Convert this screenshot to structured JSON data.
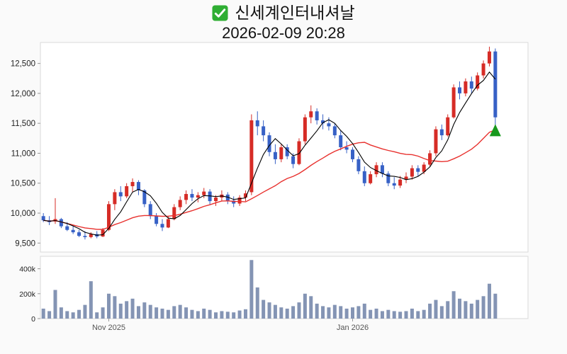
{
  "header": {
    "checkbox_icon": "green-checked-checkbox",
    "title": "신세계인터내셔날",
    "timestamp": "2026-02-09 20:28"
  },
  "chart_data": {
    "type": "candlestick",
    "title": "신세계인터내셔날",
    "subtitle": "2026-02-09 20:28",
    "price_axis": {
      "min": 9350,
      "max": 12850,
      "ticks": [
        {
          "v": 9500,
          "label": "9,500"
        },
        {
          "v": 10000,
          "label": "10,000"
        },
        {
          "v": 10500,
          "label": "10,500"
        },
        {
          "v": 11000,
          "label": "11,000"
        },
        {
          "v": 11500,
          "label": "11,500"
        },
        {
          "v": 12000,
          "label": "12,000"
        },
        {
          "v": 12500,
          "label": "12,500"
        }
      ]
    },
    "volume_axis": {
      "min": 0,
      "max": 500000,
      "ticks": [
        {
          "v": 0,
          "label": "0"
        },
        {
          "v": 200000,
          "label": "200k"
        },
        {
          "v": 400000,
          "label": "400k"
        }
      ]
    },
    "x_axis": {
      "labels": [
        {
          "index": 11,
          "label": "Nov 2025"
        },
        {
          "index": 52,
          "label": "Jan 2026"
        }
      ]
    },
    "overlays": {
      "ma_short": {
        "window": 5,
        "color": "#000000"
      },
      "ma_long": {
        "window": 20,
        "color": "#e8312e"
      }
    },
    "marker": {
      "type": "up-triangle",
      "price": 11380,
      "color": "#18981d",
      "at_last_bar": true
    },
    "colors": {
      "up": "#d62c26",
      "down": "#3761c6",
      "volume": "#8494b4",
      "panel": "#ffffff",
      "border": "#d9d9d9"
    },
    "candles": [
      [
        9950,
        10000,
        9850,
        9880,
        80000
      ],
      [
        9880,
        9950,
        9800,
        9850,
        60000
      ],
      [
        9860,
        10250,
        9820,
        9900,
        230000
      ],
      [
        9900,
        9920,
        9750,
        9780,
        90000
      ],
      [
        9780,
        9850,
        9700,
        9720,
        60000
      ],
      [
        9720,
        9780,
        9650,
        9680,
        50000
      ],
      [
        9680,
        9720,
        9600,
        9620,
        70000
      ],
      [
        9620,
        9700,
        9560,
        9600,
        110000
      ],
      [
        9600,
        9680,
        9580,
        9650,
        300000
      ],
      [
        9650,
        9700,
        9580,
        9610,
        50000
      ],
      [
        9610,
        9750,
        9600,
        9720,
        90000
      ],
      [
        9720,
        10200,
        9700,
        10150,
        200000
      ],
      [
        10150,
        10400,
        10050,
        10350,
        180000
      ],
      [
        10350,
        10450,
        10200,
        10280,
        120000
      ],
      [
        10280,
        10500,
        10250,
        10450,
        140000
      ],
      [
        10450,
        10580,
        10350,
        10520,
        160000
      ],
      [
        10520,
        10550,
        10300,
        10380,
        100000
      ],
      [
        10380,
        10400,
        10100,
        10150,
        130000
      ],
      [
        10150,
        10200,
        9900,
        9950,
        110000
      ],
      [
        9950,
        10000,
        9780,
        9820,
        90000
      ],
      [
        9820,
        9900,
        9700,
        9760,
        80000
      ],
      [
        9760,
        9950,
        9750,
        9900,
        70000
      ],
      [
        9900,
        10150,
        9880,
        10100,
        100000
      ],
      [
        10100,
        10280,
        10050,
        10220,
        110000
      ],
      [
        10220,
        10380,
        10150,
        10320,
        90000
      ],
      [
        10320,
        10400,
        10200,
        10260,
        70000
      ],
      [
        10260,
        10350,
        10180,
        10300,
        60000
      ],
      [
        10300,
        10420,
        10250,
        10360,
        80000
      ],
      [
        10360,
        10400,
        10150,
        10200,
        70000
      ],
      [
        10200,
        10300,
        10120,
        10260,
        50000
      ],
      [
        10260,
        10380,
        10200,
        10310,
        60000
      ],
      [
        10310,
        10350,
        10150,
        10210,
        55000
      ],
      [
        10210,
        10280,
        10100,
        10160,
        50000
      ],
      [
        10160,
        10300,
        10120,
        10260,
        65000
      ],
      [
        10260,
        10380,
        10200,
        10330,
        75000
      ],
      [
        10350,
        11650,
        10300,
        11550,
        470000
      ],
      [
        11550,
        11700,
        11300,
        11450,
        250000
      ],
      [
        11450,
        11550,
        11200,
        11300,
        150000
      ],
      [
        11300,
        11350,
        10950,
        11020,
        130000
      ],
      [
        11020,
        11150,
        10820,
        10900,
        110000
      ],
      [
        10900,
        11150,
        10850,
        11100,
        90000
      ],
      [
        11100,
        11150,
        10900,
        10950,
        80000
      ],
      [
        10950,
        11000,
        10750,
        10820,
        100000
      ],
      [
        10820,
        11250,
        10800,
        11200,
        130000
      ],
      [
        11200,
        11650,
        11150,
        11600,
        200000
      ],
      [
        11600,
        11800,
        11500,
        11700,
        180000
      ],
      [
        11700,
        11750,
        11480,
        11550,
        120000
      ],
      [
        11550,
        11650,
        11400,
        11500,
        100000
      ],
      [
        11500,
        11600,
        11380,
        11450,
        90000
      ],
      [
        11450,
        11500,
        11250,
        11300,
        110000
      ],
      [
        11300,
        11380,
        11050,
        11100,
        100000
      ],
      [
        11100,
        11200,
        11000,
        11060,
        80000
      ],
      [
        11060,
        11100,
        10850,
        10900,
        90000
      ],
      [
        10900,
        10950,
        10650,
        10700,
        100000
      ],
      [
        10700,
        10780,
        10450,
        10500,
        120000
      ],
      [
        10500,
        10700,
        10480,
        10650,
        70000
      ],
      [
        10650,
        10850,
        10600,
        10800,
        80000
      ],
      [
        10800,
        10850,
        10600,
        10660,
        60000
      ],
      [
        10660,
        10700,
        10450,
        10500,
        70000
      ],
      [
        10500,
        10600,
        10400,
        10460,
        60000
      ],
      [
        10460,
        10620,
        10420,
        10560,
        55000
      ],
      [
        10560,
        10680,
        10500,
        10610,
        60000
      ],
      [
        10610,
        10800,
        10560,
        10750,
        80000
      ],
      [
        10750,
        10800,
        10620,
        10690,
        60000
      ],
      [
        10690,
        10850,
        10650,
        10810,
        70000
      ],
      [
        10810,
        11050,
        10780,
        11000,
        120000
      ],
      [
        11000,
        11450,
        10950,
        11400,
        150000
      ],
      [
        11400,
        11480,
        11220,
        11300,
        100000
      ],
      [
        11300,
        11650,
        11280,
        11600,
        140000
      ],
      [
        11600,
        12150,
        11580,
        12100,
        220000
      ],
      [
        12100,
        12200,
        11900,
        12000,
        160000
      ],
      [
        12000,
        12250,
        11950,
        12200,
        140000
      ],
      [
        12200,
        12280,
        12000,
        12080,
        120000
      ],
      [
        12080,
        12350,
        12050,
        12300,
        150000
      ],
      [
        12300,
        12550,
        12250,
        12500,
        180000
      ],
      [
        12500,
        12780,
        12450,
        12700,
        280000
      ],
      [
        12700,
        12750,
        11450,
        11600,
        200000
      ]
    ]
  }
}
